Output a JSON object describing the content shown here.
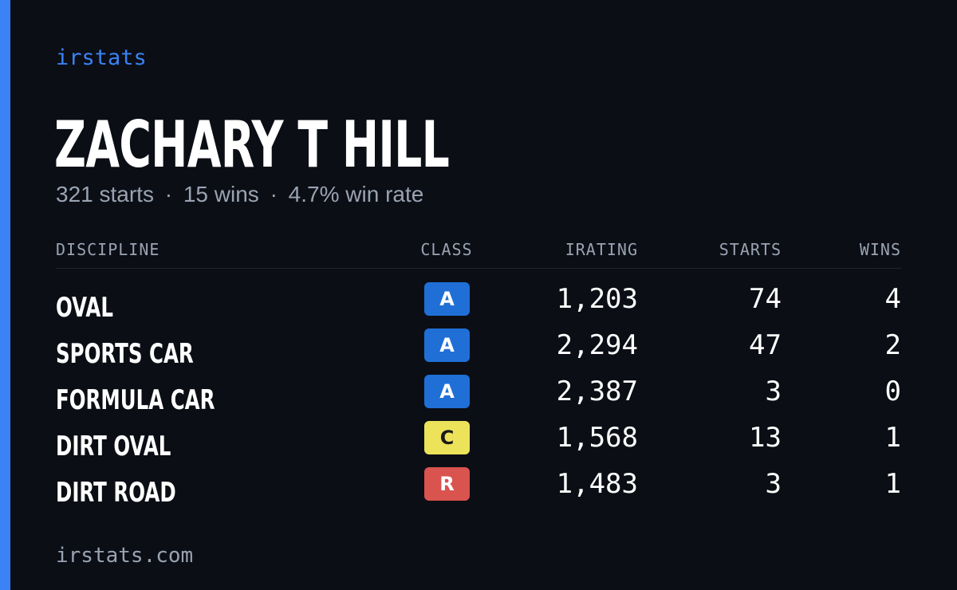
{
  "brand": "irstats",
  "driver": {
    "name": "ZACHARY T HILL",
    "starts_text": "321 starts",
    "wins_text": "15 wins",
    "win_rate_text": "4.7% win rate",
    "separator": "·"
  },
  "table": {
    "headers": {
      "discipline": "DISCIPLINE",
      "class": "CLASS",
      "irating": "IRATING",
      "starts": "STARTS",
      "wins": "WINS"
    },
    "rows": [
      {
        "discipline": "OVAL",
        "class": "A",
        "class_bg": "#1f6fd6",
        "class_fg": "#ffffff",
        "irating": "1,203",
        "starts": "74",
        "wins": "4"
      },
      {
        "discipline": "SPORTS CAR",
        "class": "A",
        "class_bg": "#1f6fd6",
        "class_fg": "#ffffff",
        "irating": "2,294",
        "starts": "47",
        "wins": "2"
      },
      {
        "discipline": "FORMULA CAR",
        "class": "A",
        "class_bg": "#1f6fd6",
        "class_fg": "#ffffff",
        "irating": "2,387",
        "starts": "3",
        "wins": "0"
      },
      {
        "discipline": "DIRT OVAL",
        "class": "C",
        "class_bg": "#ece35a",
        "class_fg": "#1a1a1a",
        "irating": "1,568",
        "starts": "13",
        "wins": "1"
      },
      {
        "discipline": "DIRT ROAD",
        "class": "R",
        "class_bg": "#d9534f",
        "class_fg": "#ffffff",
        "irating": "1,483",
        "starts": "3",
        "wins": "1"
      }
    ]
  },
  "footer": {
    "url": "irstats.com"
  },
  "colors": {
    "accent": "#3b82f6",
    "background": "#0b0e15",
    "muted_text": "#9aa3b2"
  }
}
